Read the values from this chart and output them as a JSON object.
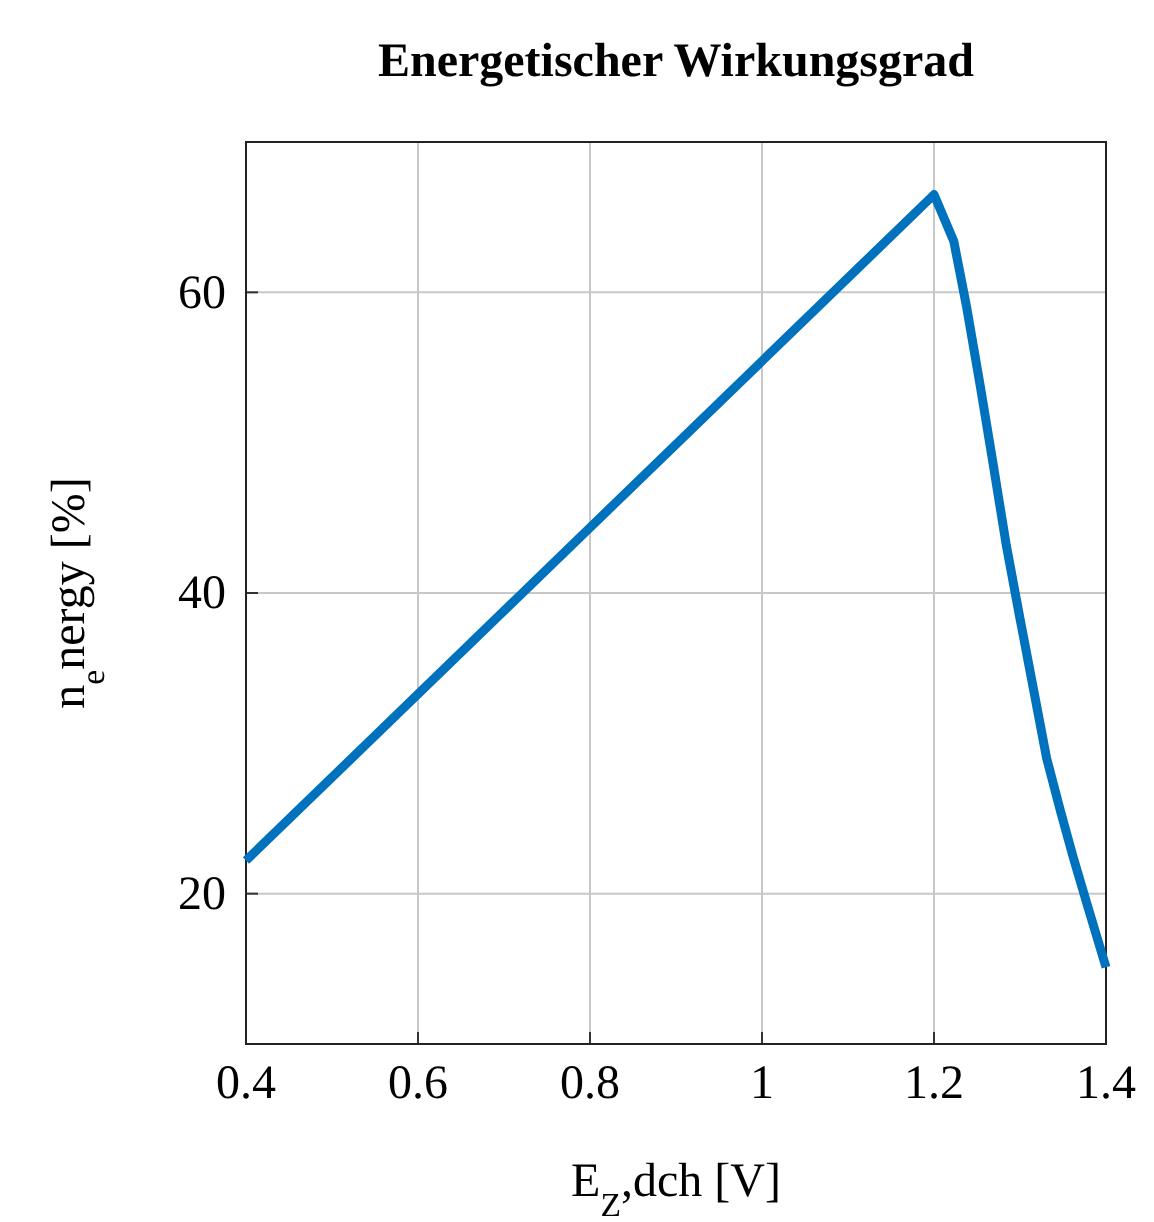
{
  "chart_data": {
    "type": "line",
    "title": "Energetischer Wirkungsgrad",
    "xlabel": "E$_{Z}$,dch [V]",
    "ylabel": "n$_{e}$nergy [%]",
    "x": [
      0.4,
      1.2,
      1.223,
      1.238,
      1.254,
      1.269,
      1.284,
      1.3,
      1.316,
      1.331,
      1.347,
      1.362,
      1.378,
      1.4
    ],
    "series": [
      {
        "color": "#0072bd",
        "values": [
          22.2,
          66.5,
          63.4,
          59.0,
          53.7,
          48.5,
          43.2,
          38.3,
          33.5,
          29.0,
          25.5,
          22.4,
          19.3,
          15.1
        ]
      }
    ],
    "xlim": [
      0.4,
      1.4
    ],
    "xticks": [
      0.4,
      0.6,
      0.8,
      1,
      1.2,
      1.4
    ],
    "ylim": [
      10,
      70
    ],
    "yticks": [
      20,
      40,
      60
    ],
    "grid": true
  }
}
